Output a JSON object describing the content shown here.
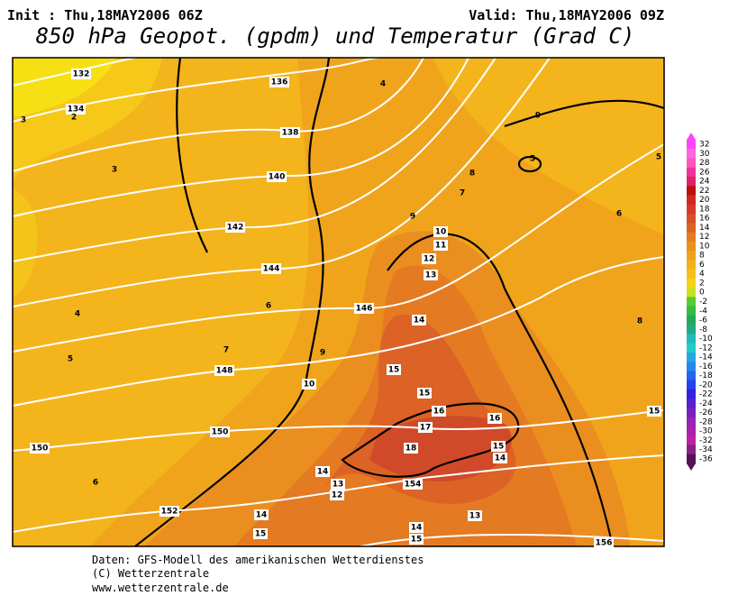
{
  "header": {
    "init": "Init : Thu,18MAY2006 06Z",
    "valid": "Valid: Thu,18MAY2006 09Z",
    "title": "850 hPa Geopot. (gpdm) und Temperatur (Grad C)"
  },
  "map": {
    "geopot_labels": [
      132,
      134,
      136,
      138,
      140,
      142,
      144,
      146,
      148,
      150,
      150,
      152,
      154,
      156
    ],
    "temp_labels": [
      3,
      2,
      3,
      4,
      9,
      5,
      5,
      8,
      7,
      6,
      9,
      10,
      11,
      12,
      13,
      14,
      8,
      4,
      5,
      6,
      7,
      9,
      10,
      15,
      15,
      16,
      17,
      16,
      15,
      18,
      15,
      14,
      14,
      13,
      12,
      6,
      14,
      15,
      14,
      15,
      13
    ]
  },
  "legend": {
    "values": [
      32,
      30,
      28,
      26,
      24,
      22,
      20,
      18,
      16,
      14,
      12,
      10,
      8,
      6,
      4,
      2,
      0,
      -2,
      -4,
      -6,
      -8,
      -10,
      -12,
      -14,
      -16,
      -18,
      -20,
      -22,
      -24,
      -26,
      -28,
      -30,
      -32,
      -34,
      -36
    ],
    "colors": [
      "#ff44ff",
      "#ff66dd",
      "#ff55bb",
      "#ee3399",
      "#dd2266",
      "#bb1111",
      "#cc2a22",
      "#d43a26",
      "#d84c28",
      "#dc6226",
      "#e47a22",
      "#ea9020",
      "#f0a21c",
      "#f3b01a",
      "#f5c018",
      "#f4d414",
      "#c8e020",
      "#55cc33",
      "#33bb44",
      "#22aa55",
      "#22aa88",
      "#22bbbb",
      "#22cccc",
      "#22aadd",
      "#2288ee",
      "#2266ee",
      "#2244ee",
      "#3322dd",
      "#5522cc",
      "#7722bb",
      "#9922bb",
      "#aa22aa",
      "#bb22aa",
      "#882288",
      "#551155"
    ]
  },
  "footer": {
    "line1": "Daten: GFS-Modell des amerikanischen Wetterdienstes",
    "line2": "(C) Wetterzentrale",
    "line3": "www.wetterzentrale.de"
  }
}
